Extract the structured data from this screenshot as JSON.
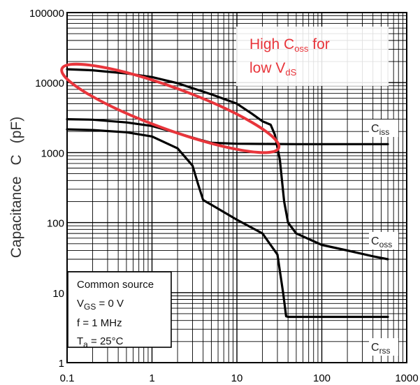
{
  "chart_data": {
    "type": "line",
    "xscale": "log",
    "yscale": "log",
    "xlim": [
      0.1,
      1000
    ],
    "ylim": [
      1,
      100000
    ],
    "grid": true,
    "x_ticks": [
      "0.1",
      "1",
      "10",
      "100",
      "1000"
    ],
    "y_ticks": [
      "1",
      "10",
      "100",
      "1000",
      "10000",
      "100000"
    ],
    "ylabel": {
      "main": "Capacitance",
      "symbol": "C",
      "unit": "(pF)"
    },
    "series": [
      {
        "name": "Ciss",
        "label_main": "C",
        "label_sub": "iss",
        "color": "#000000",
        "points": [
          [
            0.1,
            3000
          ],
          [
            0.2,
            2950
          ],
          [
            0.5,
            2700
          ],
          [
            1,
            2400
          ],
          [
            2,
            1900
          ],
          [
            3.5,
            1550
          ],
          [
            5,
            1380
          ],
          [
            10,
            1340
          ],
          [
            20,
            1330
          ],
          [
            50,
            1320
          ],
          [
            100,
            1320
          ],
          [
            300,
            1320
          ],
          [
            600,
            1320
          ]
        ]
      },
      {
        "name": "Coss",
        "label_main": "C",
        "label_sub": "oss",
        "color": "#000000",
        "points": [
          [
            0.1,
            15500
          ],
          [
            0.2,
            15000
          ],
          [
            0.5,
            13500
          ],
          [
            1,
            12000
          ],
          [
            2,
            9800
          ],
          [
            5,
            6800
          ],
          [
            10,
            5000
          ],
          [
            15,
            3600
          ],
          [
            20,
            2800
          ],
          [
            25,
            2500
          ],
          [
            28,
            1800
          ],
          [
            32,
            800
          ],
          [
            36,
            200
          ],
          [
            40,
            100
          ],
          [
            50,
            70
          ],
          [
            100,
            48
          ],
          [
            200,
            40
          ],
          [
            400,
            33
          ],
          [
            600,
            30
          ]
        ]
      },
      {
        "name": "Crss",
        "label_main": "C",
        "label_sub": "rss",
        "color": "#000000",
        "points": [
          [
            0.1,
            2150
          ],
          [
            0.2,
            2100
          ],
          [
            0.5,
            1950
          ],
          [
            1,
            1700
          ],
          [
            2,
            1150
          ],
          [
            3,
            650
          ],
          [
            3.5,
            350
          ],
          [
            4,
            210
          ],
          [
            5,
            180
          ],
          [
            10,
            110
          ],
          [
            20,
            70
          ],
          [
            30,
            35
          ],
          [
            35,
            10
          ],
          [
            38,
            4.6
          ],
          [
            40,
            4.5
          ],
          [
            100,
            4.5
          ],
          [
            300,
            4.5
          ],
          [
            600,
            4.5
          ]
        ]
      }
    ],
    "legend_box": {
      "line1": "Common source",
      "line2_main": "V",
      "line2_sub": "GS",
      "line2_rest": " = 0 V",
      "line3": "f = 1 MHz",
      "line4_main": "T",
      "line4_sub": "a",
      "line4_rest": " = 25°C"
    },
    "annotation": {
      "t1": "High C",
      "t1_sub": "oss",
      "t1_rest": " for",
      "t2": "low V",
      "t2_sub": "dS",
      "t2_rest": "",
      "color": "#e8353b"
    },
    "highlight_ellipse": {
      "from_x": 0.09,
      "to_x": 30,
      "around_series": "Coss",
      "color": "#e8353b"
    }
  }
}
